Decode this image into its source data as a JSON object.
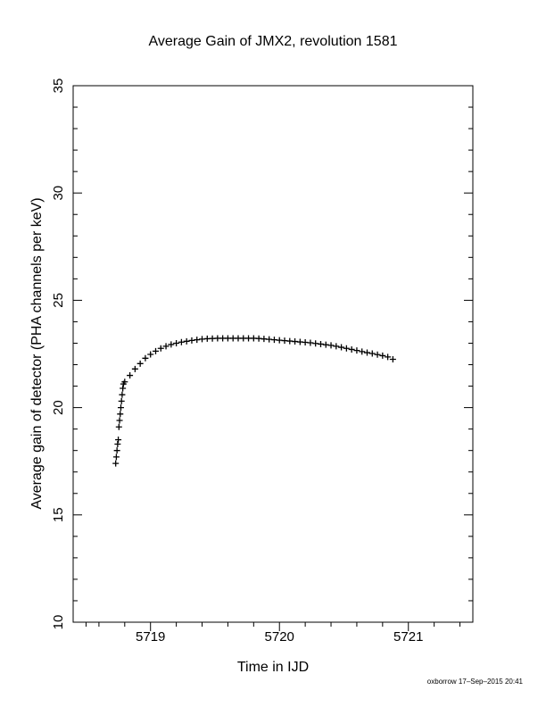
{
  "chart_data": {
    "type": "scatter",
    "title": "Average Gain of JMX2, revolution 1581",
    "x_label": "Time in IJD",
    "y_label": "Average gain of detector (PHA channels per keV)",
    "footer": "oxborrow 17–Sep–2015 20:41",
    "color": "#000000",
    "marker": "+",
    "xlim": [
      5718.4,
      5721.5
    ],
    "ylim": [
      10,
      35
    ],
    "xticks": [
      5719,
      5720,
      5721
    ],
    "yticks": [
      10,
      15,
      20,
      25,
      30,
      35
    ],
    "xticks_minor": [
      5718.5,
      5718.6,
      5718.8,
      5719.2,
      5719.4,
      5719.6,
      5719.8,
      5720.2,
      5720.4,
      5720.6,
      5720.8,
      5721.2,
      5721.4
    ],
    "yticks_minor": [
      11,
      12,
      13,
      14,
      16,
      17,
      18,
      19,
      21,
      22,
      23,
      24,
      26,
      27,
      28,
      29,
      31,
      32,
      33,
      34
    ],
    "x": [
      5718.73,
      5718.735,
      5718.74,
      5718.745,
      5718.75,
      5718.755,
      5718.76,
      5718.765,
      5718.77,
      5718.775,
      5718.78,
      5718.785,
      5718.79,
      5718.8,
      5718.84,
      5718.88,
      5718.92,
      5718.96,
      5719.0,
      5719.04,
      5719.08,
      5719.12,
      5719.16,
      5719.2,
      5719.24,
      5719.28,
      5719.32,
      5719.36,
      5719.4,
      5719.44,
      5719.48,
      5719.52,
      5719.56,
      5719.6,
      5719.64,
      5719.68,
      5719.72,
      5719.76,
      5719.8,
      5719.84,
      5719.88,
      5719.92,
      5719.96,
      5720.0,
      5720.04,
      5720.08,
      5720.12,
      5720.16,
      5720.2,
      5720.24,
      5720.28,
      5720.32,
      5720.36,
      5720.4,
      5720.44,
      5720.48,
      5720.52,
      5720.56,
      5720.6,
      5720.64,
      5720.68,
      5720.72,
      5720.76,
      5720.8,
      5720.84,
      5720.88
    ],
    "values": [
      17.4,
      17.7,
      18.0,
      18.3,
      18.5,
      19.1,
      19.4,
      19.7,
      20.0,
      20.3,
      20.6,
      20.9,
      21.1,
      21.2,
      21.5,
      21.8,
      22.05,
      22.3,
      22.48,
      22.63,
      22.76,
      22.86,
      22.94,
      23.0,
      23.05,
      23.09,
      23.13,
      23.16,
      23.19,
      23.21,
      23.22,
      23.23,
      23.23,
      23.23,
      23.23,
      23.23,
      23.23,
      23.23,
      23.23,
      23.22,
      23.2,
      23.18,
      23.16,
      23.14,
      23.12,
      23.1,
      23.08,
      23.06,
      23.04,
      23.02,
      22.99,
      22.96,
      22.93,
      22.9,
      22.86,
      22.81,
      22.76,
      22.71,
      22.66,
      22.61,
      22.56,
      22.52,
      22.47,
      22.42,
      22.36,
      22.25
    ]
  }
}
